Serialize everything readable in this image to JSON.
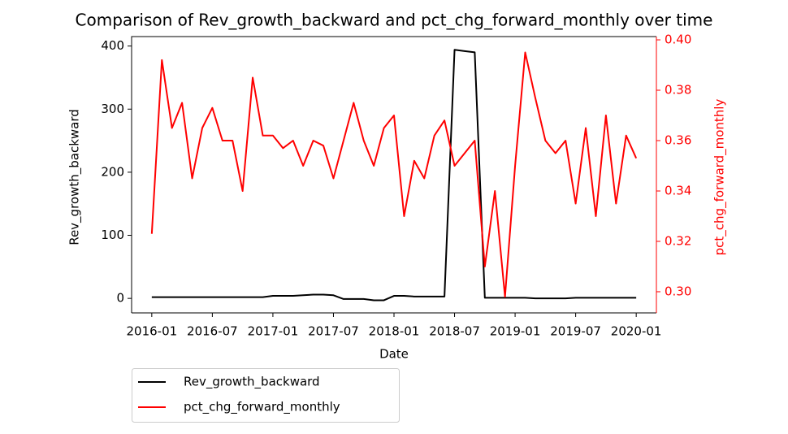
{
  "chart_data": {
    "type": "line",
    "title": "Comparison of Rev_growth_backward and pct_chg_forward_monthly over time",
    "x_label": "Date",
    "y_label": "Rev_growth_backward",
    "y2_label": "pct_chg_forward_monthly",
    "x": [
      "2016-01",
      "2016-02",
      "2016-03",
      "2016-04",
      "2016-05",
      "2016-06",
      "2016-07",
      "2016-08",
      "2016-09",
      "2016-10",
      "2016-11",
      "2016-12",
      "2017-01",
      "2017-02",
      "2017-03",
      "2017-04",
      "2017-05",
      "2017-06",
      "2017-07",
      "2017-08",
      "2017-09",
      "2017-10",
      "2017-11",
      "2017-12",
      "2018-01",
      "2018-02",
      "2018-03",
      "2018-04",
      "2018-05",
      "2018-06",
      "2018-07",
      "2018-08",
      "2018-09",
      "2018-10",
      "2018-11",
      "2018-12",
      "2019-01",
      "2019-02",
      "2019-03",
      "2019-04",
      "2019-05",
      "2019-06",
      "2019-07",
      "2019-08",
      "2019-09",
      "2019-10",
      "2019-11",
      "2019-12",
      "2020-01"
    ],
    "xlim": [
      "2015-11",
      "2020-03"
    ],
    "xticks": [
      "2016-01",
      "2016-07",
      "2017-01",
      "2017-07",
      "2018-01",
      "2018-07",
      "2019-01",
      "2019-07",
      "2020-01"
    ],
    "ylim": [
      -23,
      415
    ],
    "yticks": [
      0,
      100,
      200,
      300,
      400
    ],
    "y2lim": [
      0.2916,
      0.4013
    ],
    "y2ticks": [
      {
        "value": 0.3,
        "label": "0.30"
      },
      0.32,
      0.34,
      0.36,
      0.38,
      {
        "value": 0.4,
        "label": "0.40"
      }
    ],
    "legend": "below",
    "series": [
      {
        "name": "Rev_growth_backward",
        "color": "#000000",
        "axis": "y",
        "values": [
          2,
          2,
          2,
          2,
          2,
          2,
          2,
          2,
          2,
          2,
          2,
          2,
          4,
          4,
          4,
          5,
          6,
          6,
          5,
          -1,
          -1,
          -1,
          -3,
          -3,
          4,
          4,
          3,
          3,
          3,
          3,
          394,
          392,
          390,
          1,
          1,
          1,
          1,
          1,
          0,
          0,
          0,
          0,
          1,
          1,
          1,
          1,
          1,
          1,
          1
        ]
      },
      {
        "name": "pct_chg_forward_monthly",
        "color": "#ff0000",
        "axis": "y2",
        "values": [
          0.323,
          0.392,
          0.365,
          0.375,
          0.345,
          0.365,
          0.373,
          0.36,
          0.36,
          0.34,
          0.385,
          0.362,
          0.362,
          0.357,
          0.36,
          0.35,
          0.36,
          0.358,
          0.345,
          0.36,
          0.375,
          0.36,
          0.35,
          0.365,
          0.37,
          0.33,
          0.352,
          0.345,
          0.362,
          0.368,
          0.35,
          0.355,
          0.36,
          0.31,
          0.34,
          0.298,
          0.35,
          0.395,
          0.377,
          0.36,
          0.355,
          0.36,
          0.335,
          0.365,
          0.33,
          0.37,
          0.335,
          0.362,
          0.353
        ]
      }
    ]
  }
}
